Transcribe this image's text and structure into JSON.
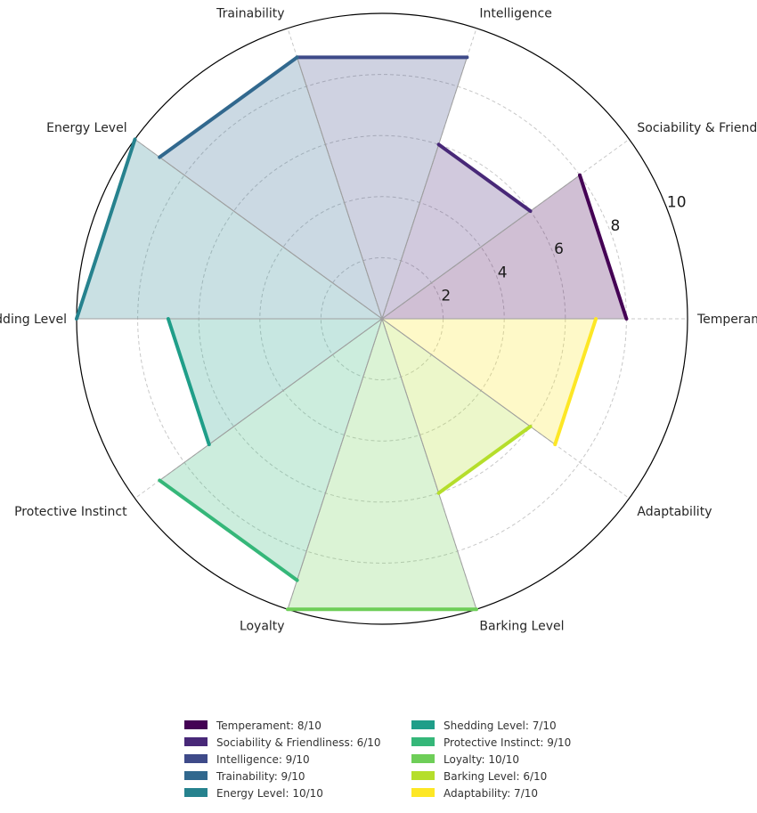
{
  "chart_data": {
    "type": "radar",
    "categories": [
      "Temperament",
      "Sociability & Friendliness",
      "Intelligence",
      "Trainability",
      "Energy Level",
      "Shedding Level",
      "Protective Instinct",
      "Loyalty",
      "Barking Level",
      "Adaptability"
    ],
    "values": [
      8,
      6,
      9,
      9,
      10,
      7,
      9,
      10,
      6,
      7
    ],
    "rmax": 10,
    "r_ticks": [
      2,
      4,
      6,
      8,
      10
    ],
    "colors": [
      "#440154",
      "#482878",
      "#3e4a89",
      "#31688e",
      "#26828e",
      "#1f9e89",
      "#35b779",
      "#6ece58",
      "#b5de2b",
      "#fde725"
    ],
    "legend": {
      "placement": "bottom",
      "entries": [
        "Temperament: 8/10",
        "Sociability & Friendliness: 6/10",
        "Intelligence: 9/10",
        "Trainability: 9/10",
        "Energy Level: 10/10",
        "Shedding Level: 7/10",
        "Protective Instinct: 9/10",
        "Loyalty: 10/10",
        "Barking Level: 6/10",
        "Adaptability: 7/10"
      ]
    },
    "grid": true
  }
}
